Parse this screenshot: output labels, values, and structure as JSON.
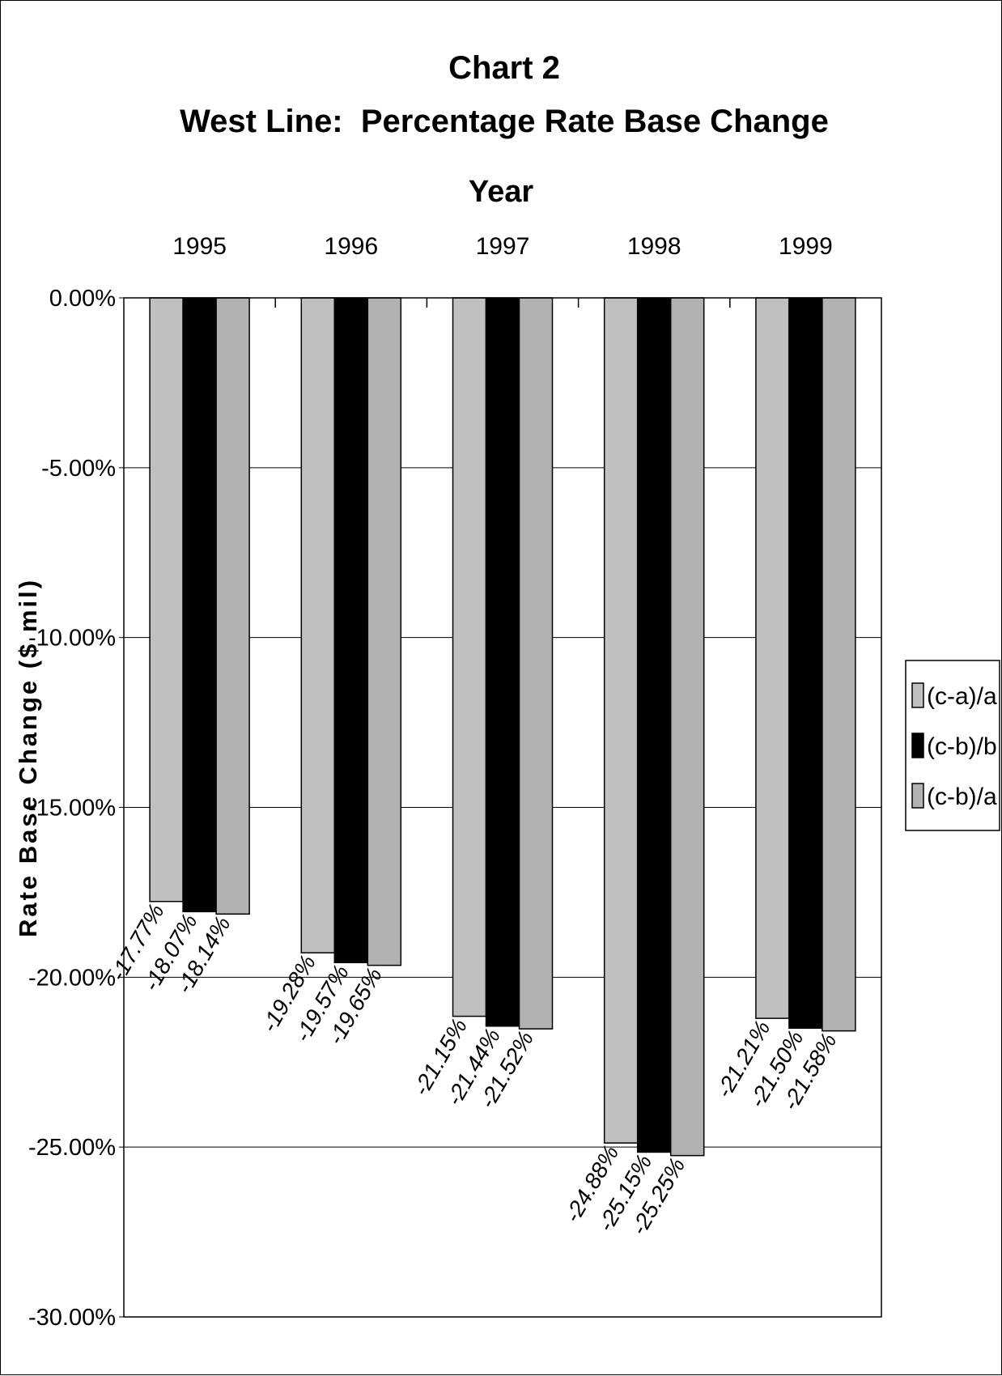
{
  "chart_data": {
    "type": "bar",
    "title": "Chart 2",
    "subtitle": "West Line:  Percentage Rate Base Change",
    "xlabel": "Year",
    "ylabel": "Rate Base Change ($ mil)",
    "x_axis_position": "top",
    "categories": [
      "1995",
      "1996",
      "1997",
      "1998",
      "1999"
    ],
    "series": [
      {
        "name": "(c-a)/a",
        "color": "#c0c0c0",
        "values": [
          -17.77,
          -19.28,
          -21.15,
          -24.88,
          -21.21
        ]
      },
      {
        "name": "(c-b)/b",
        "color": "#000000",
        "values": [
          -18.07,
          -19.57,
          -21.44,
          -25.15,
          -21.5
        ]
      },
      {
        "name": "(c-b)/a",
        "color": "#b2b2b2",
        "values": [
          -18.14,
          -19.65,
          -21.52,
          -25.25,
          -21.58
        ]
      }
    ],
    "data_labels": [
      [
        "-17.77%",
        "-19.28%",
        "-21.15%",
        "-24.88%",
        "-21.21%"
      ],
      [
        "-18.07%",
        "-19.57%",
        "-21.44%",
        "-25.15%",
        "-21.50%"
      ],
      [
        "-18.14%",
        "-19.65%",
        "-21.52%",
        "-25.25%",
        "-21.58%"
      ]
    ],
    "ylim": [
      -30,
      0
    ],
    "yticks": [
      0,
      -5,
      -10,
      -15,
      -20,
      -25,
      -30
    ],
    "ytick_labels": [
      "0.00%",
      "-5.00%",
      "-10.00%",
      "-15.00%",
      "-20.00%",
      "-25.00%",
      "-30.00%"
    ],
    "grid": true,
    "legend_position": "right"
  }
}
